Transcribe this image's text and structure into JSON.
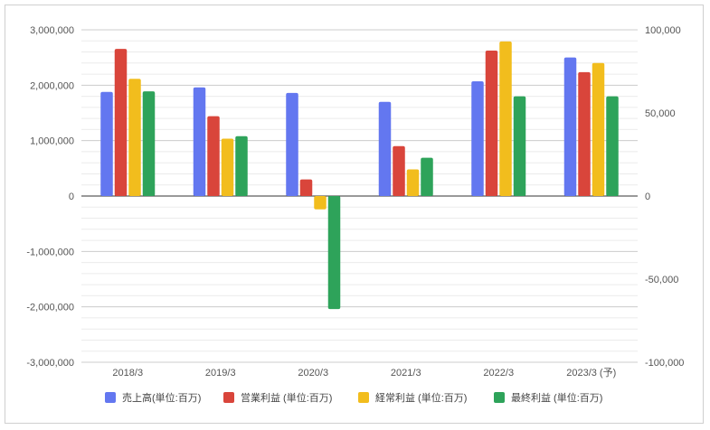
{
  "chart_data": {
    "type": "bar",
    "categories": [
      "2018/3",
      "2019/3",
      "2020/3",
      "2021/3",
      "2022/3",
      "2023/3 (予)"
    ],
    "left_axis": {
      "ylim": [
        -3000000,
        3000000
      ],
      "ticks": [
        "3,000,000",
        "2,000,000",
        "1,000,000",
        "0",
        "-1,000,000",
        "-2,000,000",
        "-3,000,000"
      ]
    },
    "right_axis": {
      "ylim": [
        -100000,
        100000
      ],
      "ticks": [
        "100,000",
        "50,000",
        "0",
        "-50,000",
        "-100,000"
      ]
    },
    "series": [
      {
        "name": "売上高(単位:百万)",
        "axis": "left",
        "color": "#6377f0",
        "values": [
          1880000,
          1960000,
          1860000,
          1700000,
          2070000,
          2500000
        ]
      },
      {
        "name": "営業利益 (単位:百万)",
        "axis": "right",
        "color": "#d9453b",
        "values": [
          88500,
          48000,
          10000,
          30000,
          87500,
          74500
        ]
      },
      {
        "name": "経常利益 (単位:百万)",
        "axis": "right",
        "color": "#f2bd1d",
        "values": [
          70500,
          34500,
          -8000,
          16000,
          93000,
          80000
        ]
      },
      {
        "name": "最終利益 (単位:百万)",
        "axis": "right",
        "color": "#2ea35a",
        "values": [
          63000,
          36000,
          -68000,
          23000,
          60000,
          60000
        ]
      }
    ],
    "grid": true,
    "legend_position": "bottom"
  }
}
